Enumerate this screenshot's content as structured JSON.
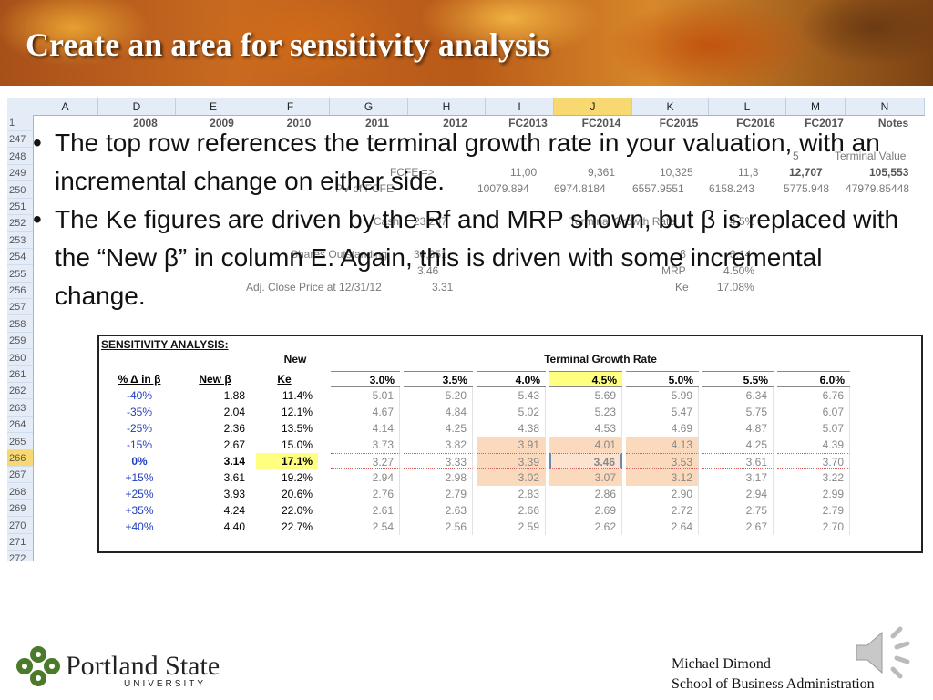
{
  "slide_title": "Create an area for sensitivity analysis",
  "sheet": {
    "columns": [
      "A",
      "D",
      "E",
      "F",
      "G",
      "H",
      "I",
      "J",
      "K",
      "L",
      "M",
      "N"
    ],
    "selected_column": "J",
    "row_numbers": [
      "1",
      "247",
      "248",
      "249",
      "250",
      "251",
      "252",
      "253",
      "254",
      "255",
      "256",
      "257",
      "258",
      "259",
      "260",
      "261",
      "262",
      "263",
      "264",
      "265",
      "266",
      "267",
      "268",
      "269",
      "270",
      "271",
      "272"
    ],
    "selected_row": "266",
    "year_headers": [
      "2008",
      "2009",
      "2010",
      "2011",
      "2012",
      "FC2013",
      "FC2014",
      "FC2015",
      "FC2016",
      "FC2017",
      "Notes"
    ],
    "background_text": {
      "fcfe_label": "FCFE =>",
      "fcfe_values": [
        "11,00",
        "9,361",
        "10,325",
        "11,3",
        "12,707"
      ],
      "col5": "5",
      "terminal_value_label": "Terminal Value",
      "terminal_value": "105,553",
      "pv_fcfe_label": "PV of FCFE",
      "pv_values": [
        "10079.894",
        "6974.8184",
        "6557.9551",
        "6158.243",
        "5775.948",
        "47979.85448"
      ],
      "cash_label": "Cash",
      "cash_value": "23,207",
      "tgr_label": "Terminal Growth Rate",
      "tgr_value": "4.5%",
      "shares_label": "Shares Outstanding",
      "shares_value": "30,851",
      "beta_label": "β",
      "beta_value": "3.14",
      "mrp_label": "MRP",
      "mrp_value": "4.50%",
      "ke_label": "Ke",
      "ke_value": "17.08%",
      "value_per_share_value": "3.46",
      "adj_close_label": "Adj. Close Price at 12/31/12",
      "adj_close_value": "3.31"
    }
  },
  "bullets": [
    "The top row references the terminal growth rate in your valuation, with an incremental change on either side.",
    "The Ke figures are driven by the Rf and MRP shown, but β is replaced with the “New β” in column E. Again, this is driven with some incremental change."
  ],
  "sensitivity": {
    "title": "SENSITIVITY ANALYSIS:",
    "new_label": "New",
    "terminal_growth_label": "Terminal Growth Rate",
    "col_headers": [
      "% Δ in β",
      "New β",
      "Ke"
    ],
    "growth_rates": [
      "3.0%",
      "3.5%",
      "4.0%",
      "4.5%",
      "5.0%",
      "5.5%",
      "6.0%"
    ],
    "rows": [
      {
        "pct": "-40%",
        "beta": "1.88",
        "ke": "11.4%",
        "values": [
          "5.01",
          "5.20",
          "5.43",
          "5.69",
          "5.99",
          "6.34",
          "6.76"
        ]
      },
      {
        "pct": "-35%",
        "beta": "2.04",
        "ke": "12.1%",
        "values": [
          "4.67",
          "4.84",
          "5.02",
          "5.23",
          "5.47",
          "5.75",
          "6.07"
        ]
      },
      {
        "pct": "-25%",
        "beta": "2.36",
        "ke": "13.5%",
        "values": [
          "4.14",
          "4.25",
          "4.38",
          "4.53",
          "4.69",
          "4.87",
          "5.07"
        ]
      },
      {
        "pct": "-15%",
        "beta": "2.67",
        "ke": "15.0%",
        "values": [
          "3.73",
          "3.82",
          "3.91",
          "4.01",
          "4.13",
          "4.25",
          "4.39"
        ]
      },
      {
        "pct": "0%",
        "beta": "3.14",
        "ke": "17.1%",
        "values": [
          "3.27",
          "3.33",
          "3.39",
          "3.46",
          "3.53",
          "3.61",
          "3.70"
        ]
      },
      {
        "pct": "+15%",
        "beta": "3.61",
        "ke": "19.2%",
        "values": [
          "2.94",
          "2.98",
          "3.02",
          "3.07",
          "3.12",
          "3.17",
          "3.22"
        ]
      },
      {
        "pct": "+25%",
        "beta": "3.93",
        "ke": "20.6%",
        "values": [
          "2.76",
          "2.79",
          "2.83",
          "2.86",
          "2.90",
          "2.94",
          "2.99"
        ]
      },
      {
        "pct": "+35%",
        "beta": "4.24",
        "ke": "22.0%",
        "values": [
          "2.61",
          "2.63",
          "2.66",
          "2.69",
          "2.72",
          "2.75",
          "2.79"
        ]
      },
      {
        "pct": "+40%",
        "beta": "4.40",
        "ke": "22.7%",
        "values": [
          "2.54",
          "2.56",
          "2.59",
          "2.62",
          "2.64",
          "2.67",
          "2.70"
        ]
      }
    ]
  },
  "footer": {
    "logo_word": "Portland State",
    "logo_sub": "UNIVERSITY",
    "author": "Michael Dimond",
    "school": "School of Business Administration"
  },
  "colors": {
    "highlight_yellow": "#ffff80",
    "sensitivity_band": "#fbd9bd",
    "blue_text": "#1f3fbf"
  }
}
